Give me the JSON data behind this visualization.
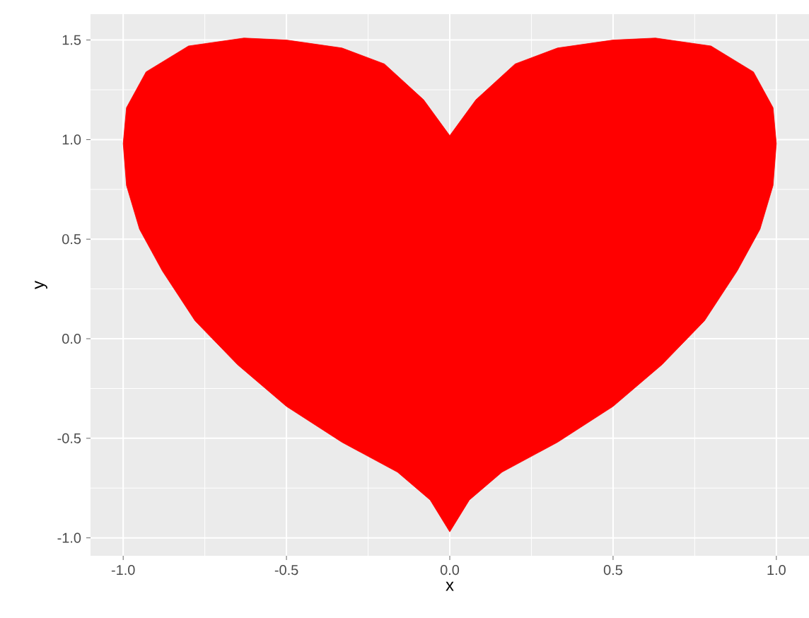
{
  "chart_data": {
    "type": "area",
    "xlabel": "x",
    "ylabel": "y",
    "series": [
      {
        "color": "#ff0000",
        "x": [
          0,
          0.08,
          0.2,
          0.33,
          0.5,
          0.63,
          0.8,
          0.93,
          0.99,
          1.0,
          0.99,
          0.95,
          0.88,
          0.78,
          0.65,
          0.5,
          0.33,
          0.16,
          0.06,
          0,
          -0.06,
          -0.16,
          -0.33,
          -0.5,
          -0.65,
          -0.78,
          -0.88,
          -0.95,
          -0.99,
          -1.0,
          -0.99,
          -0.93,
          -0.8,
          -0.63,
          -0.5,
          -0.33,
          -0.2,
          -0.08
        ],
        "values": [
          1.02,
          1.2,
          1.38,
          1.46,
          1.5,
          1.51,
          1.47,
          1.34,
          1.16,
          0.98,
          0.77,
          0.55,
          0.34,
          0.09,
          -0.13,
          -0.34,
          -0.52,
          -0.67,
          -0.81,
          -0.97,
          -0.81,
          -0.67,
          -0.52,
          -0.34,
          -0.13,
          0.09,
          0.34,
          0.55,
          0.77,
          0.98,
          1.16,
          1.34,
          1.47,
          1.51,
          1.5,
          1.46,
          1.38,
          1.2
        ]
      }
    ],
    "xlim": [
      -1.1,
      1.1
    ],
    "ylim": [
      -1.09,
      1.63
    ],
    "xticks": [
      {
        "value": -1.0,
        "label": "-1.0"
      },
      {
        "value": -0.75,
        "label": null
      },
      {
        "value": -0.5,
        "label": "-0.5"
      },
      {
        "value": -0.25,
        "label": null
      },
      {
        "value": 0.0,
        "label": "0.0"
      },
      {
        "value": 0.25,
        "label": null
      },
      {
        "value": 0.5,
        "label": "0.5"
      },
      {
        "value": 0.75,
        "label": null
      },
      {
        "value": 1.0,
        "label": "1.0"
      }
    ],
    "yticks": [
      {
        "value": -1.0,
        "label": "-1.0"
      },
      {
        "value": -0.75,
        "label": null
      },
      {
        "value": -0.5,
        "label": "-0.5"
      },
      {
        "value": -0.25,
        "label": null
      },
      {
        "value": 0.0,
        "label": "0.0"
      },
      {
        "value": 0.25,
        "label": null
      },
      {
        "value": 0.5,
        "label": "0.5"
      },
      {
        "value": 0.75,
        "label": null
      },
      {
        "value": 1.0,
        "label": "1.0"
      },
      {
        "value": 1.25,
        "label": null
      },
      {
        "value": 1.5,
        "label": "1.5"
      }
    ],
    "grid": true
  }
}
